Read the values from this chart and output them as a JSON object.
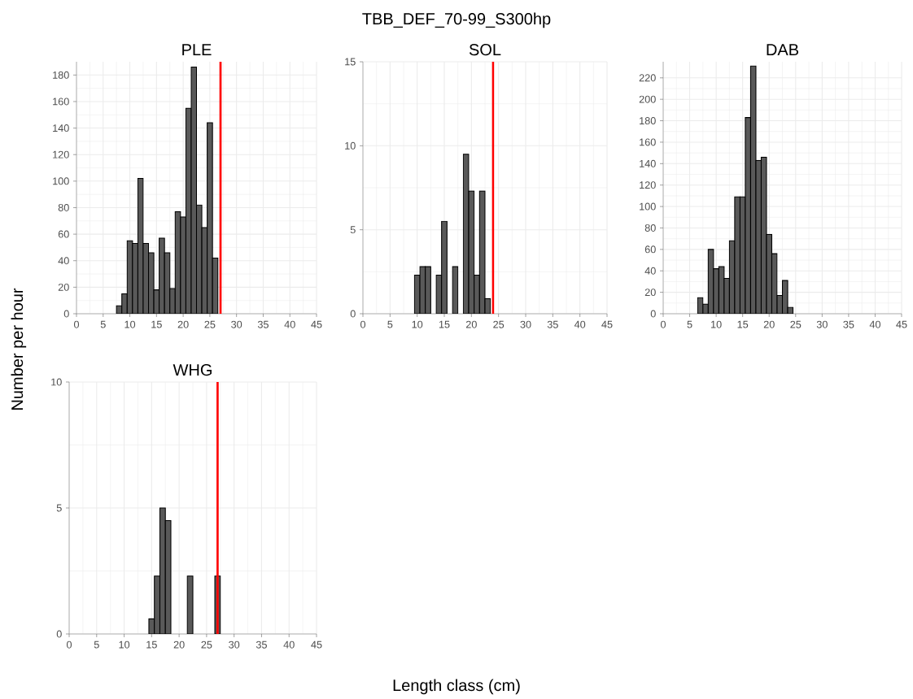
{
  "chart_data": [
    {
      "type": "histogram",
      "title": "PLE",
      "annotations": [
        "TBB_DEF_70-99_S300hp"
      ],
      "xlabel": "Length class (cm)",
      "ylabel": "Number per hour",
      "color": "#595959",
      "grid": true,
      "bins": [
        7.5,
        8.5,
        9.5,
        10.5,
        11.5,
        12.5,
        13.5,
        14.5,
        15.5,
        16.5,
        17.5,
        18.5,
        19.5,
        20.5,
        21.5,
        22.5,
        23.5,
        24.5,
        25.5,
        26.5
      ],
      "values": [
        6,
        15,
        55,
        53,
        102,
        53,
        46,
        18,
        57,
        46,
        19,
        77,
        73,
        155,
        186,
        82,
        65,
        144,
        42
      ],
      "xlim": [
        0,
        45
      ],
      "ylim": [
        0,
        190
      ],
      "xticks": [
        0,
        5,
        10,
        15,
        20,
        25,
        30,
        35,
        40,
        45
      ],
      "yticks": [
        0,
        20,
        40,
        60,
        80,
        100,
        120,
        140,
        160,
        180
      ],
      "ref_lines": [
        {
          "axis": "x",
          "value": 27,
          "color": "#ff0000"
        }
      ]
    },
    {
      "type": "histogram",
      "title": "SOL",
      "color": "#595959",
      "grid": true,
      "bins": [
        9.5,
        10.5,
        11.5,
        12.5,
        13.5,
        14.5,
        15.5,
        16.5,
        17.5,
        18.5,
        19.5,
        20.5,
        21.5,
        22.5,
        23.5
      ],
      "values": [
        2.3,
        2.8,
        2.8,
        null,
        2.3,
        5.5,
        null,
        2.8,
        null,
        9.5,
        7.3,
        2.3,
        7.3,
        0.9
      ],
      "xlim": [
        0,
        45
      ],
      "ylim": [
        0,
        15
      ],
      "xticks": [
        0,
        5,
        10,
        15,
        20,
        25,
        30,
        35,
        40,
        45
      ],
      "yticks": [
        0,
        5,
        10,
        15
      ],
      "ref_lines": [
        {
          "axis": "x",
          "value": 24,
          "color": "#ff0000"
        }
      ]
    },
    {
      "type": "histogram",
      "title": "DAB",
      "color": "#595959",
      "grid": true,
      "bins": [
        6.5,
        7.5,
        8.5,
        9.5,
        10.5,
        11.5,
        12.5,
        13.5,
        14.5,
        15.5,
        16.5,
        17.5,
        18.5,
        19.5,
        20.5,
        21.5,
        22.5,
        23.5,
        24.5
      ],
      "values": [
        15,
        9,
        60,
        42,
        44,
        33,
        68,
        109,
        109,
        183,
        231,
        143,
        146,
        74,
        56,
        17,
        31,
        6
      ],
      "xlim": [
        0,
        45
      ],
      "ylim": [
        0,
        235
      ],
      "xticks": [
        0,
        5,
        10,
        15,
        20,
        25,
        30,
        35,
        40,
        45
      ],
      "yticks": [
        0,
        20,
        40,
        60,
        80,
        100,
        120,
        140,
        160,
        180,
        200,
        220
      ]
    },
    {
      "type": "histogram",
      "title": "WHG",
      "color": "#595959",
      "grid": true,
      "bins": [
        14.5,
        15.5,
        16.5,
        17.5,
        18.5,
        19.5,
        20.5,
        21.5,
        22.5,
        23.5,
        24.5,
        25.5,
        26.5,
        27.5
      ],
      "values": [
        0.6,
        2.3,
        5,
        4.5,
        null,
        null,
        null,
        2.3,
        null,
        null,
        null,
        null,
        2.3
      ],
      "xlim": [
        0,
        45
      ],
      "ylim": [
        0,
        10
      ],
      "xticks": [
        0,
        5,
        10,
        15,
        20,
        25,
        30,
        35,
        40,
        45
      ],
      "yticks": [
        0,
        5,
        10
      ],
      "ref_lines": [
        {
          "axis": "x",
          "value": 27,
          "color": "#ff0000"
        }
      ]
    }
  ]
}
